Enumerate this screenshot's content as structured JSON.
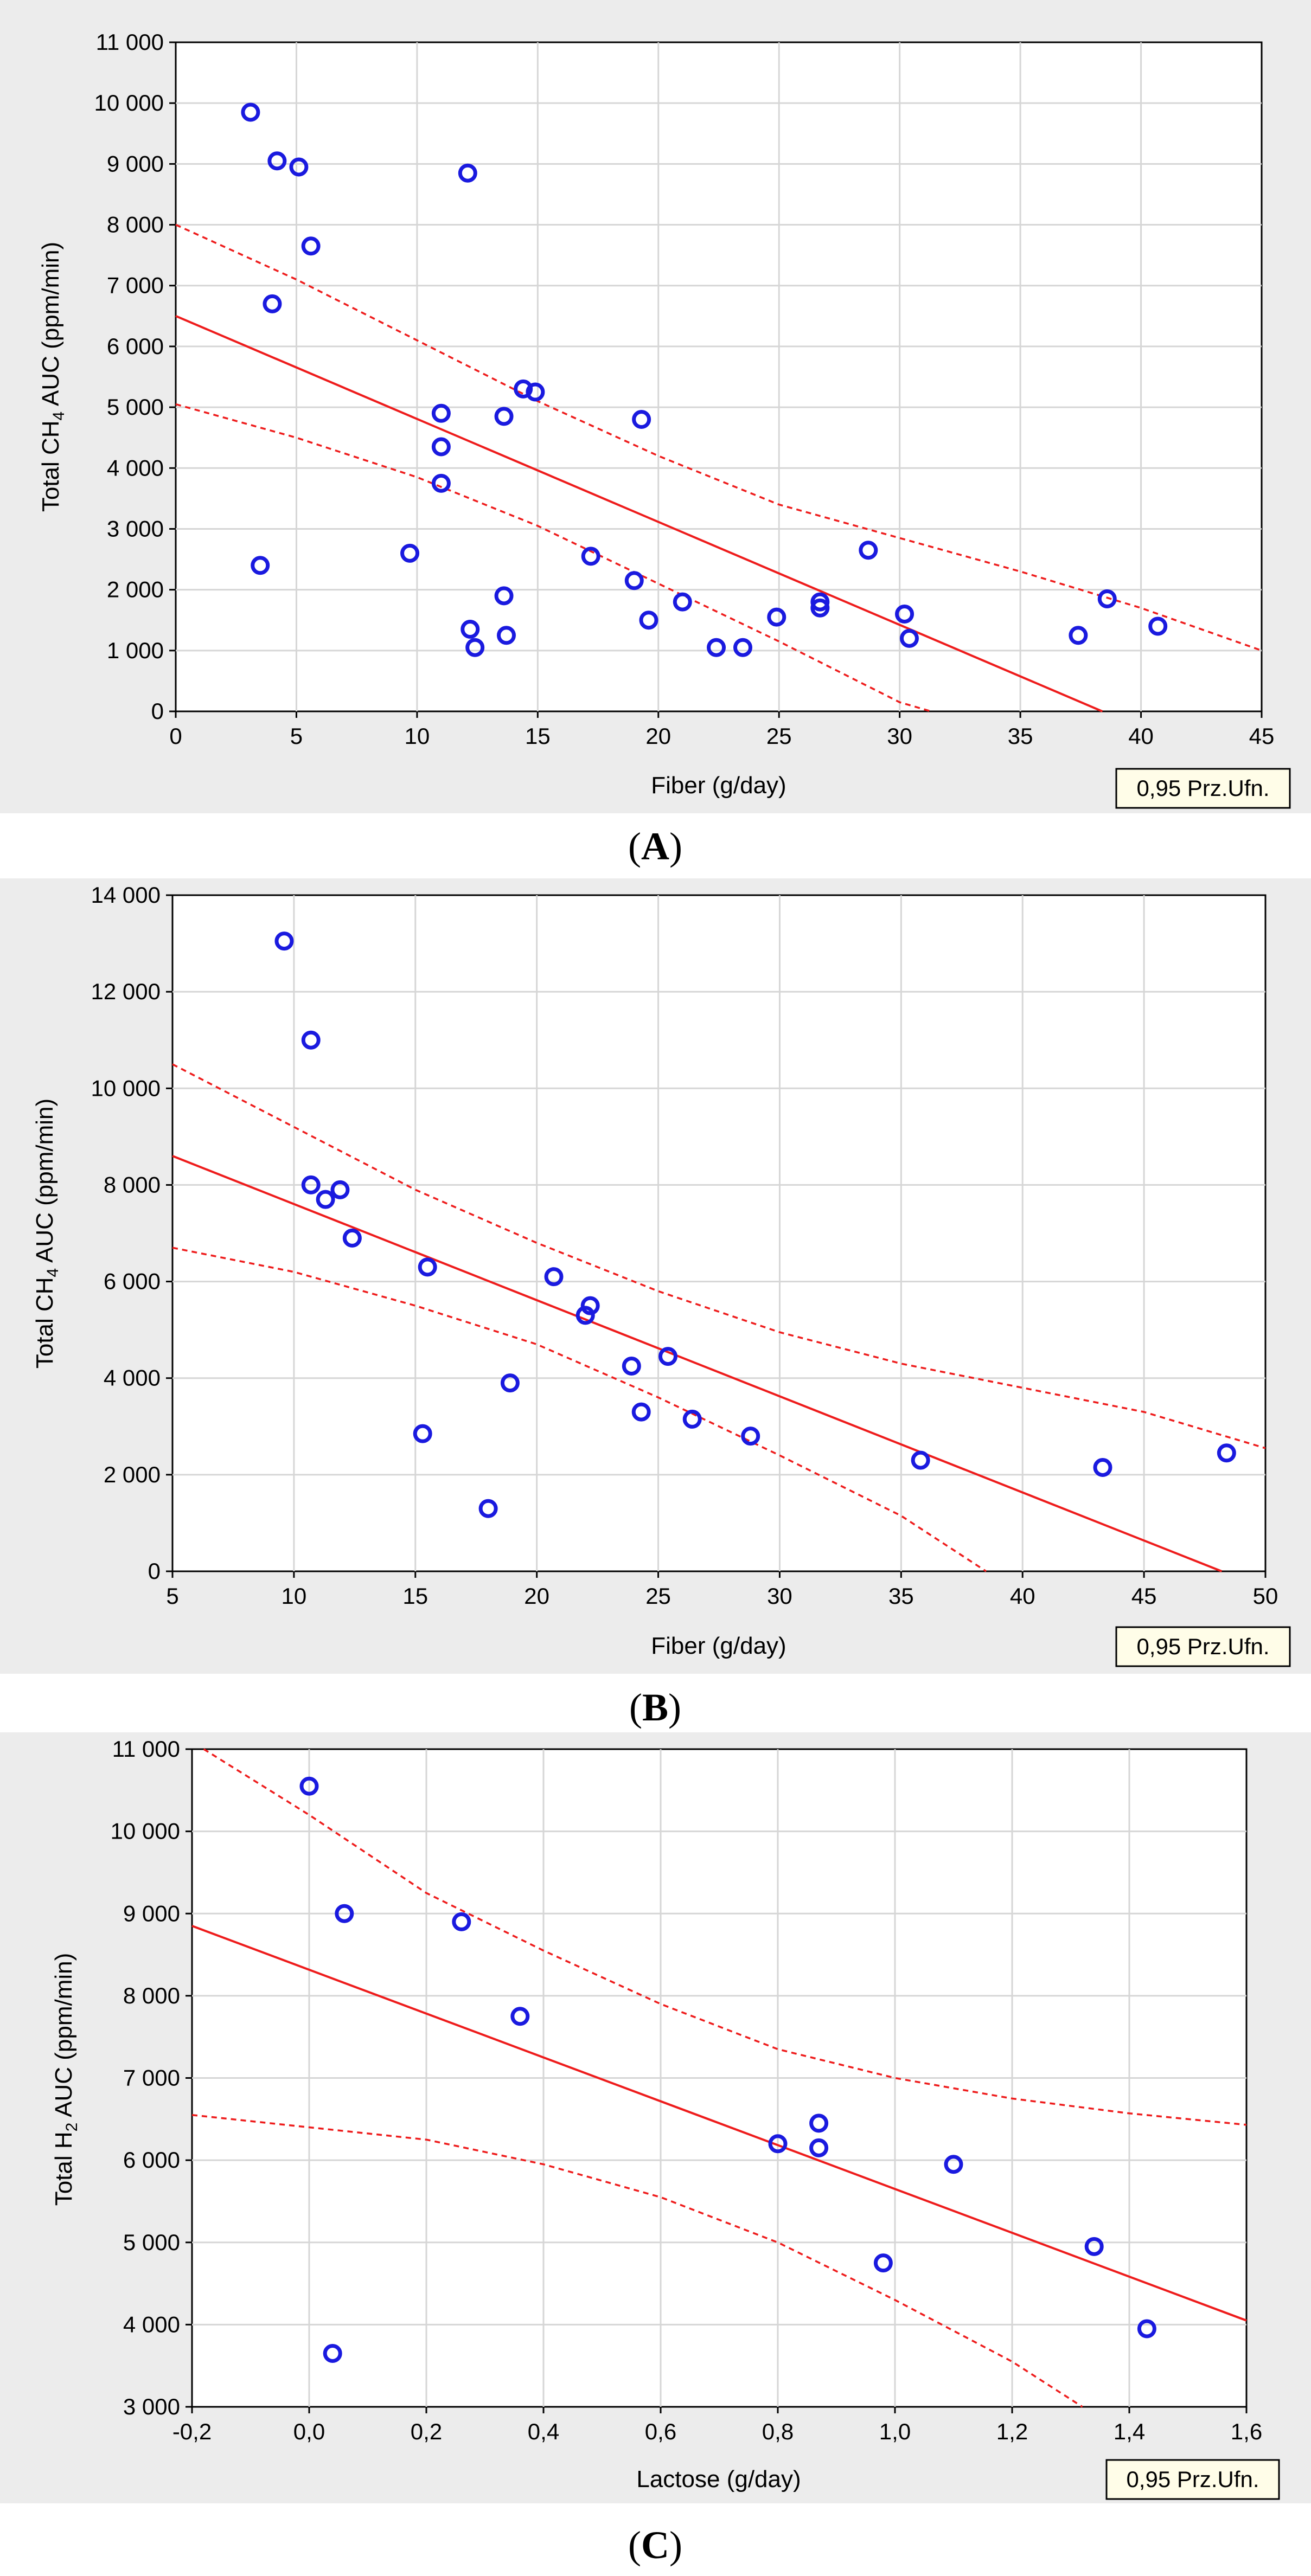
{
  "chart_data": [
    {
      "type": "scatter",
      "id": "A",
      "caption_letter": "A",
      "xlabel": "Fiber (g/day)",
      "ylabel_prefix": "Total CH",
      "ylabel_sub": "4",
      "ylabel_suffix": " AUC (ppm/min)",
      "legend": "0,95 Prz.Ufn.",
      "xlim": [
        0,
        45
      ],
      "ylim": [
        0,
        11000
      ],
      "xticks": [
        0,
        5,
        10,
        15,
        20,
        25,
        30,
        35,
        40,
        45
      ],
      "xtick_labels": [
        "0",
        "5",
        "10",
        "15",
        "20",
        "25",
        "30",
        "35",
        "40",
        "45"
      ],
      "yticks": [
        0,
        1000,
        2000,
        3000,
        4000,
        5000,
        6000,
        7000,
        8000,
        9000,
        10000,
        11000
      ],
      "ytick_labels": [
        "0",
        "1 000",
        "2 000",
        "3 000",
        "4 000",
        "5 000",
        "6 000",
        "7 000",
        "8 000",
        "9 000",
        "10 000",
        "11 000"
      ],
      "fit_line": {
        "x": [
          0,
          38.4
        ],
        "y": [
          6500,
          0
        ]
      },
      "conf_upper": {
        "x": [
          0,
          5,
          10,
          15,
          20,
          25,
          30,
          35,
          40,
          45
        ],
        "y": [
          8000,
          7100,
          6100,
          5100,
          4200,
          3400,
          2850,
          2300,
          1700,
          1000
        ]
      },
      "conf_lower": {
        "x": [
          0,
          5,
          10,
          15,
          20,
          25,
          30,
          31.3
        ],
        "y": [
          5050,
          4500,
          3850,
          3050,
          2100,
          1150,
          150,
          0
        ]
      },
      "points": [
        {
          "x": 3.1,
          "y": 9850
        },
        {
          "x": 4.2,
          "y": 9050
        },
        {
          "x": 5.1,
          "y": 8950
        },
        {
          "x": 5.6,
          "y": 7650
        },
        {
          "x": 4.0,
          "y": 6700
        },
        {
          "x": 3.5,
          "y": 2400
        },
        {
          "x": 9.7,
          "y": 2600
        },
        {
          "x": 11.0,
          "y": 4900
        },
        {
          "x": 11.0,
          "y": 4350
        },
        {
          "x": 11.0,
          "y": 3750
        },
        {
          "x": 12.1,
          "y": 8850
        },
        {
          "x": 12.2,
          "y": 1350
        },
        {
          "x": 12.4,
          "y": 1050
        },
        {
          "x": 13.6,
          "y": 4850
        },
        {
          "x": 13.6,
          "y": 1900
        },
        {
          "x": 13.7,
          "y": 1250
        },
        {
          "x": 14.4,
          "y": 5300
        },
        {
          "x": 14.9,
          "y": 5250
        },
        {
          "x": 17.2,
          "y": 2550
        },
        {
          "x": 19.0,
          "y": 2150
        },
        {
          "x": 19.3,
          "y": 4800
        },
        {
          "x": 19.6,
          "y": 1500
        },
        {
          "x": 21.0,
          "y": 1800
        },
        {
          "x": 22.4,
          "y": 1050
        },
        {
          "x": 23.5,
          "y": 1050
        },
        {
          "x": 24.9,
          "y": 1550
        },
        {
          "x": 26.7,
          "y": 1800
        },
        {
          "x": 26.7,
          "y": 1700
        },
        {
          "x": 28.7,
          "y": 2650
        },
        {
          "x": 30.2,
          "y": 1600
        },
        {
          "x": 30.4,
          "y": 1200
        },
        {
          "x": 37.4,
          "y": 1250
        },
        {
          "x": 38.6,
          "y": 1850
        },
        {
          "x": 40.7,
          "y": 1400
        }
      ]
    },
    {
      "type": "scatter",
      "id": "B",
      "caption_letter": "B",
      "xlabel": "Fiber (g/day)",
      "ylabel_prefix": "Total CH",
      "ylabel_sub": "4",
      "ylabel_suffix": " AUC (ppm/min)",
      "legend": "0,95 Prz.Ufn.",
      "xlim": [
        5,
        50
      ],
      "ylim": [
        0,
        14000
      ],
      "xticks": [
        5,
        10,
        15,
        20,
        25,
        30,
        35,
        40,
        45,
        50
      ],
      "xtick_labels": [
        "5",
        "10",
        "15",
        "20",
        "25",
        "30",
        "35",
        "40",
        "45",
        "50"
      ],
      "yticks": [
        0,
        2000,
        4000,
        6000,
        8000,
        10000,
        12000,
        14000
      ],
      "ytick_labels": [
        "0",
        "2 000",
        "4 000",
        "6 000",
        "8 000",
        "10 000",
        "12 000",
        "14 000"
      ],
      "fit_line": {
        "x": [
          5,
          48.2
        ],
        "y": [
          8600,
          0
        ]
      },
      "conf_upper": {
        "x": [
          5,
          10,
          15,
          20,
          25,
          30,
          35,
          40,
          45,
          50
        ],
        "y": [
          10500,
          9200,
          7900,
          6800,
          5800,
          4950,
          4300,
          3800,
          3300,
          2550
        ]
      },
      "conf_lower": {
        "x": [
          5,
          10,
          15,
          20,
          25,
          30,
          35,
          38.5
        ],
        "y": [
          6700,
          6200,
          5500,
          4700,
          3600,
          2400,
          1150,
          0
        ]
      },
      "points": [
        {
          "x": 9.6,
          "y": 13050
        },
        {
          "x": 10.7,
          "y": 11000
        },
        {
          "x": 10.7,
          "y": 8000
        },
        {
          "x": 11.3,
          "y": 7700
        },
        {
          "x": 11.9,
          "y": 7900
        },
        {
          "x": 12.4,
          "y": 6900
        },
        {
          "x": 15.3,
          "y": 2850
        },
        {
          "x": 15.5,
          "y": 6300
        },
        {
          "x": 18.0,
          "y": 1300
        },
        {
          "x": 18.9,
          "y": 3900
        },
        {
          "x": 20.7,
          "y": 6100
        },
        {
          "x": 22.0,
          "y": 5300
        },
        {
          "x": 22.2,
          "y": 5500
        },
        {
          "x": 23.9,
          "y": 4250
        },
        {
          "x": 24.3,
          "y": 3300
        },
        {
          "x": 25.4,
          "y": 4450
        },
        {
          "x": 26.4,
          "y": 3150
        },
        {
          "x": 28.8,
          "y": 2800
        },
        {
          "x": 35.8,
          "y": 2300
        },
        {
          "x": 43.3,
          "y": 2150
        },
        {
          "x": 48.4,
          "y": 2450
        }
      ]
    },
    {
      "type": "scatter",
      "id": "C",
      "caption_letter": "C",
      "xlabel": "Lactose (g/day)",
      "ylabel_prefix": "Total H",
      "ylabel_sub": "2",
      "ylabel_suffix": " AUC (ppm/min)",
      "legend": "0,95 Prz.Ufn.",
      "xlim": [
        -0.2,
        1.6
      ],
      "ylim": [
        3000,
        11000
      ],
      "xticks": [
        -0.2,
        0.0,
        0.2,
        0.4,
        0.6,
        0.8,
        1.0,
        1.2,
        1.4,
        1.6
      ],
      "xtick_labels": [
        "-0,2",
        "0,0",
        "0,2",
        "0,4",
        "0,6",
        "0,8",
        "1,0",
        "1,2",
        "1,4",
        "1,6"
      ],
      "yticks": [
        3000,
        4000,
        5000,
        6000,
        7000,
        8000,
        9000,
        10000,
        11000
      ],
      "ytick_labels": [
        "3 000",
        "4 000",
        "5 000",
        "6 000",
        "7 000",
        "8 000",
        "9 000",
        "10 000",
        "11 000"
      ],
      "fit_line": {
        "x": [
          -0.2,
          1.6
        ],
        "y": [
          8850,
          4050
        ]
      },
      "conf_upper": {
        "x": [
          -0.18,
          0.0,
          0.2,
          0.4,
          0.6,
          0.8,
          1.0,
          1.2,
          1.4,
          1.6
        ],
        "y": [
          11000,
          10200,
          9250,
          8550,
          7900,
          7350,
          7000,
          6750,
          6570,
          6430
        ]
      },
      "conf_lower": {
        "x": [
          -0.2,
          0.0,
          0.2,
          0.4,
          0.6,
          0.8,
          1.0,
          1.2,
          1.32
        ],
        "y": [
          6550,
          6400,
          6250,
          5950,
          5550,
          5000,
          4300,
          3550,
          3000
        ]
      },
      "points": [
        {
          "x": 0.0,
          "y": 10550
        },
        {
          "x": 0.06,
          "y": 9000
        },
        {
          "x": 0.04,
          "y": 3650
        },
        {
          "x": 0.26,
          "y": 8900
        },
        {
          "x": 0.36,
          "y": 7750
        },
        {
          "x": 0.8,
          "y": 6200
        },
        {
          "x": 0.87,
          "y": 6450
        },
        {
          "x": 0.87,
          "y": 6150
        },
        {
          "x": 0.98,
          "y": 4750
        },
        {
          "x": 1.1,
          "y": 5950
        },
        {
          "x": 1.34,
          "y": 4950
        },
        {
          "x": 1.43,
          "y": 3950
        }
      ]
    }
  ]
}
